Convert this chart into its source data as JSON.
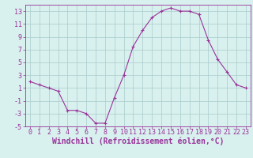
{
  "x": [
    0,
    1,
    2,
    3,
    4,
    5,
    6,
    7,
    8,
    9,
    10,
    11,
    12,
    13,
    14,
    15,
    16,
    17,
    18,
    19,
    20,
    21,
    22,
    23
  ],
  "y": [
    2,
    1.5,
    1,
    0.5,
    -2.5,
    -2.5,
    -3,
    -4.5,
    -4.5,
    -0.5,
    3,
    7.5,
    10,
    12,
    13,
    13.5,
    13,
    13,
    12.5,
    8.5,
    5.5,
    3.5,
    1.5,
    1
  ],
  "line_color": "#993399",
  "marker": "+",
  "marker_size": 3,
  "marker_color": "#993399",
  "bg_color": "#d8f0ee",
  "grid_color": "#aacccc",
  "axis_color": "#993399",
  "tick_color": "#993399",
  "xlabel": "Windchill (Refroidissement éolien,°C)",
  "xlabel_color": "#993399",
  "ylim": [
    -5,
    14
  ],
  "xlim": [
    -0.5,
    23.5
  ],
  "yticks": [
    -5,
    -3,
    -1,
    1,
    3,
    5,
    7,
    9,
    11,
    13
  ],
  "xticks": [
    0,
    1,
    2,
    3,
    4,
    5,
    6,
    7,
    8,
    9,
    10,
    11,
    12,
    13,
    14,
    15,
    16,
    17,
    18,
    19,
    20,
    21,
    22,
    23
  ],
  "font_size": 6,
  "xlabel_size": 7,
  "linewidth": 0.8
}
